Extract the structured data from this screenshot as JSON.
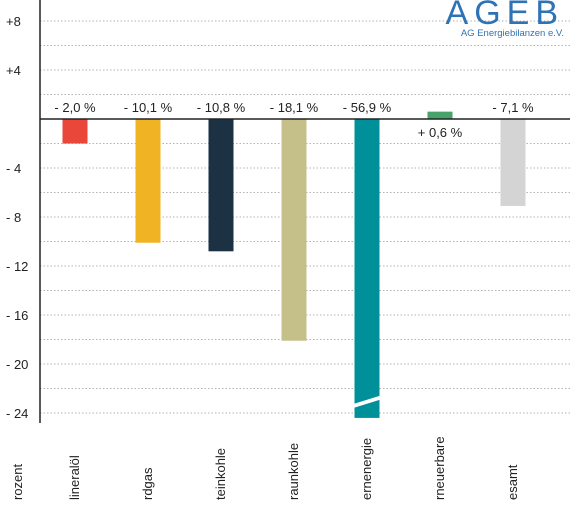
{
  "logo": {
    "name": "AGEB",
    "subtitle": "AG Energiebilanzen e.V."
  },
  "chart_data": {
    "type": "bar",
    "ylabel": "rozent",
    "ylim": [
      -24,
      8
    ],
    "yticks": [
      8,
      4,
      -4,
      -8,
      -12,
      -16,
      -20,
      -24
    ],
    "ytick_labels": [
      "+8",
      "+4",
      "- 4",
      "- 8",
      "- 12",
      "- 16",
      "- 20",
      "- 24"
    ],
    "categories": [
      "lineralöl",
      "rdgas",
      "teinkohle",
      "raunkohle",
      "ernenergie",
      "rneuerbare",
      "esamt"
    ],
    "values": [
      -2.0,
      -10.1,
      -10.8,
      -18.1,
      -56.9,
      0.6,
      -7.1
    ],
    "value_labels": [
      "- 2,0 %",
      "- 10,1 %",
      "- 10,8 %",
      "- 18,1 %",
      "- 56,9 %",
      "+ 0,6 %",
      "- 7,1 %"
    ],
    "colors": [
      "#e8473a",
      "#f0b323",
      "#1c3144",
      "#c5c08a",
      "#00909a",
      "#47a36a",
      "#d4d4d4"
    ],
    "axis_break": "ernenergie",
    "grid": true
  }
}
